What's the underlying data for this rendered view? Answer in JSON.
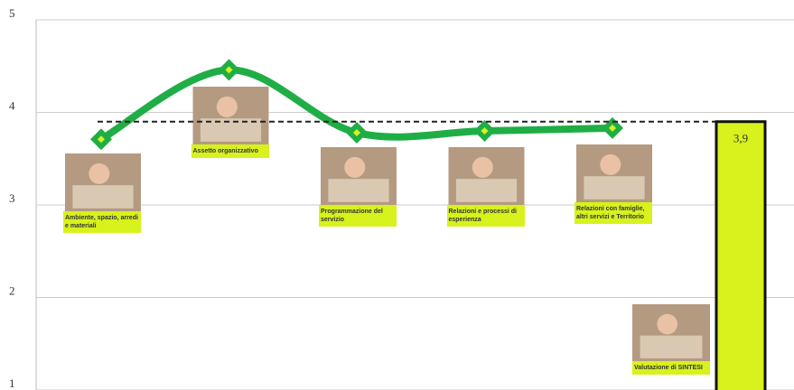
{
  "chart_data": [
    {
      "type": "line",
      "categories": [
        "Ambiente, spazio, arredi e materiali",
        "Assetto organizzativo",
        "Programmazione del servizio",
        "Relazioni e processi di esperienza",
        "Relazioni con famiglie, altri servizi e Territorio"
      ],
      "series": [
        {
          "color": "#1fae46",
          "values": [
            3.71,
            4.46,
            3.78,
            3.8,
            3.83
          ]
        }
      ],
      "ylim": [
        1,
        5
      ],
      "yticks": [
        1,
        2,
        3,
        4,
        5
      ],
      "grid": true
    },
    {
      "type": "bar",
      "categories": [
        "Valutazione di SINTESI"
      ],
      "values": [
        3.9
      ],
      "value_labels": [
        "3,9"
      ],
      "color": "#d7f21c",
      "ylim": [
        1,
        5
      ]
    }
  ]
}
